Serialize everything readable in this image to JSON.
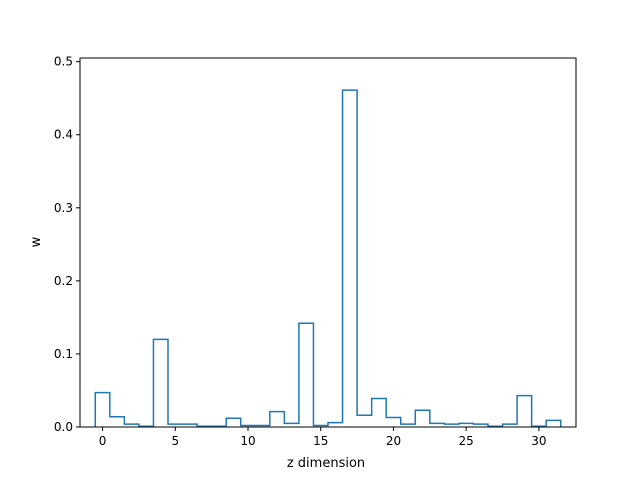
{
  "chart_data": {
    "type": "step",
    "title": "",
    "xlabel": "z dimension",
    "ylabel": "w",
    "xlim": [
      -1.55,
      32.55
    ],
    "ylim": [
      0,
      0.505
    ],
    "xticks": [
      0,
      5,
      10,
      15,
      20,
      25,
      30
    ],
    "yticks": [
      0.0,
      0.1,
      0.2,
      0.3,
      0.4,
      0.5
    ],
    "ytick_labels": [
      "0.0",
      "0.1",
      "0.2",
      "0.3",
      "0.4",
      "0.5"
    ],
    "grid": false,
    "line_color": "#1f77b4",
    "x": [
      0,
      1,
      2,
      3,
      4,
      5,
      6,
      7,
      8,
      9,
      10,
      11,
      12,
      13,
      14,
      15,
      16,
      17,
      18,
      19,
      20,
      21,
      22,
      23,
      24,
      25,
      26,
      27,
      28,
      29,
      30,
      31
    ],
    "values": [
      0.047,
      0.014,
      0.004,
      0.001,
      0.12,
      0.004,
      0.004,
      0.001,
      0.001,
      0.012,
      0.002,
      0.002,
      0.021,
      0.005,
      0.142,
      0.002,
      0.006,
      0.461,
      0.016,
      0.039,
      0.013,
      0.004,
      0.023,
      0.005,
      0.004,
      0.005,
      0.004,
      0.001,
      0.004,
      0.043,
      0.001,
      0.009
    ]
  }
}
